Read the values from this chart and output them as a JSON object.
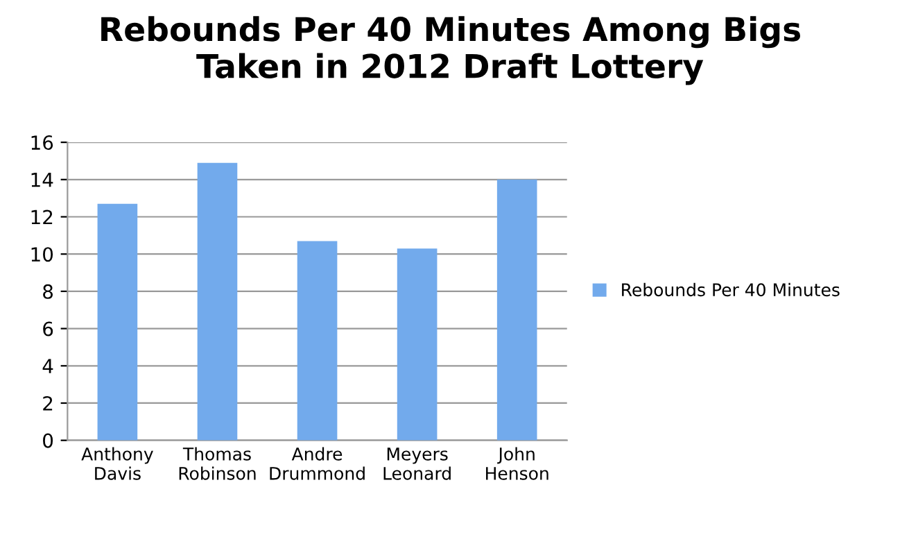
{
  "chart_data": {
    "type": "bar",
    "title": "Rebounds Per 40 Minutes Among Bigs\nTaken in 2012 Draft Lottery",
    "categories": [
      "Anthony\nDavis",
      "Thomas\nRobinson",
      "Andre\nDrummond",
      "Meyers\nLeonard",
      "John\nHenson"
    ],
    "series": [
      {
        "name": "Rebounds Per 40 Minutes",
        "color": "#72aaec",
        "values": [
          12.7,
          14.9,
          10.7,
          10.3,
          14.0
        ]
      }
    ],
    "ylim": [
      0,
      16
    ],
    "yticks": [
      0,
      2,
      4,
      6,
      8,
      10,
      12,
      14,
      16
    ],
    "grid": "y",
    "legend": "right"
  }
}
